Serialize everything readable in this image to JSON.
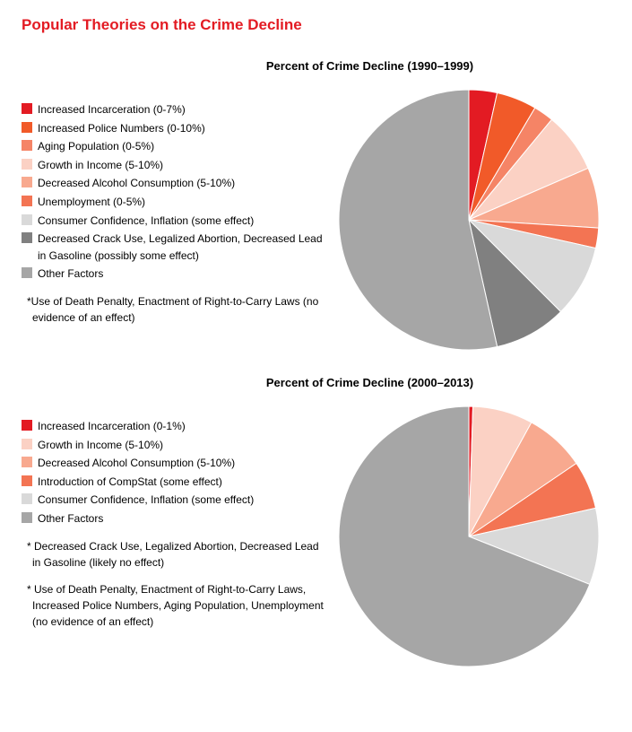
{
  "title": "Popular Theories on the Crime Decline",
  "title_color": "#e31b23",
  "background": "#ffffff",
  "charts": [
    {
      "title": "Percent of Crime Decline (1990–1999)",
      "pie": {
        "radius": 145,
        "start_angle_deg": 0,
        "slices": [
          {
            "label": "Increased Incarceration (0-7%)",
            "value": 3.5,
            "color": "#e31b23"
          },
          {
            "label": "Increased Police Numbers (0-10%)",
            "value": 5.0,
            "color": "#f15a29"
          },
          {
            "label": "Aging Population (0-5%)",
            "value": 2.5,
            "color": "#f58466"
          },
          {
            "label": "Growth in Income (5-10%)",
            "value": 7.5,
            "color": "#fbd1c4"
          },
          {
            "label": "Decreased Alcohol Consumption (5-10%)",
            "value": 7.5,
            "color": "#f8a98f"
          },
          {
            "label": "Unemployment (0-5%)",
            "value": 2.5,
            "color": "#f37453"
          },
          {
            "label": "Consumer Confidence, Inflation (some effect)",
            "value": 9.0,
            "color": "#d9d9d9"
          },
          {
            "label": "Decreased Crack Use, Legalized Abortion, Decreased Lead in Gasoline (possibly some effect)",
            "value": 9.0,
            "color": "#808080"
          },
          {
            "label": "Other Factors",
            "value": 53.5,
            "color": "#a6a6a6"
          }
        ]
      },
      "footnotes": [
        "*Use of Death Penalty, Enactment of Right-to-Carry Laws (no evidence of an effect)"
      ]
    },
    {
      "title": "Percent of Crime Decline (2000–2013)",
      "pie": {
        "radius": 145,
        "start_angle_deg": 0,
        "slices": [
          {
            "label": "Increased Incarceration (0-1%)",
            "value": 0.5,
            "color": "#e31b23"
          },
          {
            "label": "Growth in Income (5-10%)",
            "value": 7.5,
            "color": "#fbd1c4"
          },
          {
            "label": "Decreased Alcohol Consumption (5-10%)",
            "value": 7.5,
            "color": "#f8a98f"
          },
          {
            "label": "Introduction of CompStat (some effect)",
            "value": 6.0,
            "color": "#f37453"
          },
          {
            "label": "Consumer Confidence, Inflation (some effect)",
            "value": 9.5,
            "color": "#d9d9d9"
          },
          {
            "label": "Other Factors",
            "value": 69.0,
            "color": "#a6a6a6"
          }
        ]
      },
      "footnotes": [
        "* Decreased Crack Use, Legalized Abortion, Decreased Lead in Gasoline (likely no effect)",
        "* Use of Death Penalty, Enactment of Right-to-Carry Laws, Increased Police Numbers, Aging Population, Unemployment (no evidence of an effect)"
      ]
    }
  ]
}
